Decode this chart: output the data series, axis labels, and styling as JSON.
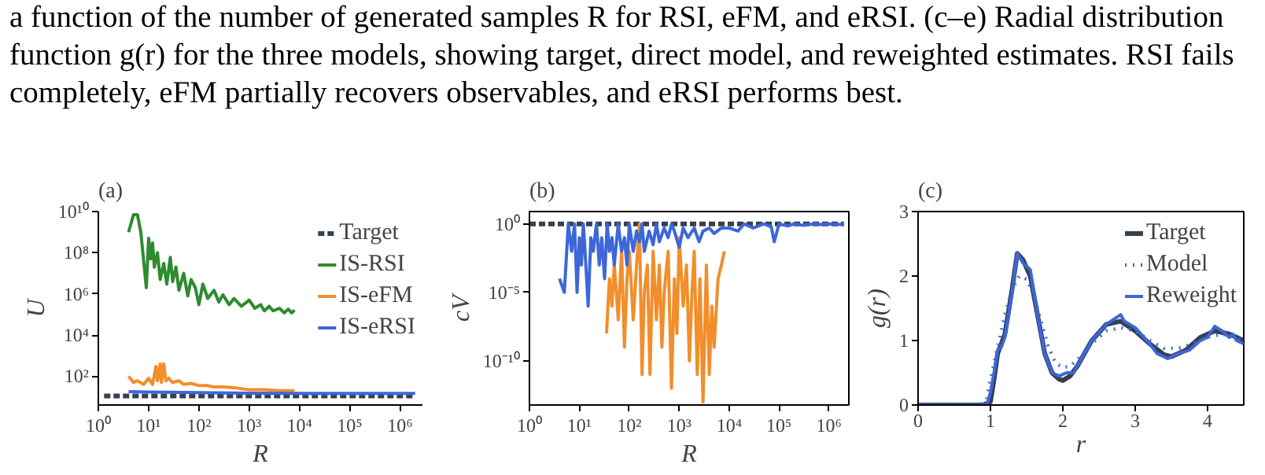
{
  "chart_data": [
    {
      "type": "other",
      "annotations": [
        "a function of the number of generated samples R for RSI, eFM, and eRSI. (c–e) Radial distribution",
        "function g(r) for the three models, showing target, direct model, and reweighted estimates. RSI fails",
        "completely, eFM partially recovers observables, and eRSI performs best."
      ]
    },
    {
      "type": "line",
      "title": "(a)",
      "xlabel": "R",
      "ylabel": "U",
      "log": "xy",
      "grid": false,
      "legend": "top right",
      "xlim": [
        1,
        2800000
      ],
      "ylim": [
        4,
        10000000000
      ],
      "xticks": [
        {
          "value": 1,
          "label": "10⁰"
        },
        {
          "value": 10,
          "label": "10¹"
        },
        {
          "value": 100,
          "label": "10²"
        },
        {
          "value": 1000,
          "label": "10³"
        },
        {
          "value": 10000,
          "label": "10⁴"
        },
        {
          "value": 100000,
          "label": "10⁵"
        },
        {
          "value": 1000000,
          "label": "10⁶"
        }
      ],
      "yticks": [
        {
          "value": 100,
          "label": "10²"
        },
        {
          "value": 10000,
          "label": "10⁴"
        },
        {
          "value": 1000000,
          "label": "10⁶"
        },
        {
          "value": 100000000,
          "label": "10⁸"
        },
        {
          "value": 10000000000,
          "label": "10¹⁰"
        }
      ],
      "series": [
        {
          "name": "Target",
          "color": "#35404f",
          "line_style": "dashed",
          "x": [
            1.3,
            2000000
          ],
          "values": [
            11,
            11
          ]
        },
        {
          "name": "IS-RSI",
          "color": "#2e8b2e",
          "x": [
            4,
            5,
            6,
            7,
            9,
            10,
            11,
            12,
            13,
            15,
            17,
            20,
            23,
            27,
            30,
            35,
            40,
            50,
            60,
            70,
            85,
            100,
            120,
            150,
            200,
            250,
            300,
            400,
            500,
            700,
            1000,
            1300,
            1700,
            2000,
            2500,
            3000,
            4000,
            5000,
            6000,
            7000,
            8000
          ],
          "values": [
            1000000000,
            7000000000,
            7000000000,
            1000000000,
            2000000,
            500000000,
            50000000,
            300000000,
            20000000,
            100000000,
            5000000,
            30000000,
            3000000,
            60000000,
            4000000,
            20000000,
            1500000,
            10000000,
            800000,
            5000000,
            2000000,
            300000,
            3000000,
            600000,
            1500000,
            400000,
            900000,
            300000,
            600000,
            250000,
            500000,
            200000,
            300000,
            150000,
            250000,
            150000,
            200000,
            120000,
            180000,
            120000,
            160000
          ]
        },
        {
          "name": "IS-eFM",
          "color": "#f28e2b",
          "x": [
            4,
            5,
            6,
            8,
            10,
            12,
            14,
            15,
            17,
            18,
            20,
            22,
            25,
            30,
            40,
            50,
            70,
            100,
            150,
            200,
            300,
            500,
            700,
            1000,
            2000,
            4000,
            8000
          ],
          "values": [
            100,
            50,
            60,
            40,
            80,
            40,
            300,
            60,
            400,
            50,
            400,
            60,
            80,
            50,
            60,
            40,
            45,
            35,
            35,
            30,
            30,
            28,
            25,
            22,
            22,
            20,
            20
          ]
        },
        {
          "name": "IS-eRSI",
          "color": "#3d67d9",
          "x": [
            4,
            10,
            100,
            1000,
            10000,
            100000,
            1000000,
            2000000
          ],
          "values": [
            18,
            17,
            16,
            15,
            14.5,
            14.5,
            14.5,
            14.5
          ]
        }
      ]
    },
    {
      "type": "line",
      "title": "(b)",
      "xlabel": "R",
      "ylabel": "cV",
      "log": "xy",
      "grid": false,
      "xlim": [
        1,
        2500000
      ],
      "ylim": [
        6e-14,
        8
      ],
      "xticks": [
        {
          "value": 1,
          "label": "10⁰"
        },
        {
          "value": 10,
          "label": "10¹"
        },
        {
          "value": 100,
          "label": "10²"
        },
        {
          "value": 1000,
          "label": "10³"
        },
        {
          "value": 10000,
          "label": "10⁴"
        },
        {
          "value": 100000,
          "label": "10⁵"
        },
        {
          "value": 1000000,
          "label": "10⁶"
        }
      ],
      "yticks": [
        {
          "value": 1e-10,
          "label": "10⁻¹⁰"
        },
        {
          "value": 1e-05,
          "label": "10⁻⁵"
        },
        {
          "value": 1,
          "label": "10⁰"
        }
      ],
      "series": [
        {
          "color": "#35404f",
          "line_style": "dashed",
          "x": [
            1,
            2000000
          ],
          "values": [
            1,
            1
          ]
        },
        {
          "color": "#f28e2b",
          "x": [
            35,
            40,
            45,
            50,
            55,
            60,
            70,
            80,
            90,
            100,
            120,
            140,
            160,
            180,
            200,
            230,
            260,
            300,
            350,
            400,
            450,
            500,
            600,
            700,
            800,
            900,
            1000,
            1200,
            1400,
            1600,
            1800,
            2000,
            2300,
            2600,
            3000,
            3500,
            4000,
            4500,
            5000,
            6000,
            7000,
            8000
          ],
          "values": [
            1e-08,
            0.0001,
            1e-06,
            0.001,
            1e-05,
            1e-07,
            0.01,
            1e-09,
            0.0001,
            0.01,
            1e-07,
            0.001,
            1,
            1e-11,
            1e-05,
            0.001,
            1e-11,
            0.01,
            1e-07,
            0.001,
            1e-09,
            1e-05,
            0.01,
            1e-12,
            0.0001,
            1e-08,
            0.1,
            1e-06,
            0.001,
            1e-10,
            1e-05,
            0.01,
            1e-11,
            0.0001,
            1e-13,
            0.001,
            1e-11,
            1e-06,
            1e-09,
            0.0001,
            0.001,
            0.01
          ]
        },
        {
          "color": "#3d67d9",
          "x": [
            4,
            5,
            6,
            7,
            8,
            9,
            10,
            11,
            12,
            13,
            15,
            17,
            19,
            22,
            25,
            28,
            32,
            36,
            40,
            45,
            50,
            60,
            70,
            80,
            90,
            100,
            120,
            140,
            160,
            180,
            200,
            250,
            300,
            350,
            400,
            500,
            600,
            700,
            800,
            1000,
            1200,
            1500,
            2000,
            2500,
            3000,
            4000,
            5000,
            7000,
            10000,
            15000,
            20000,
            30000,
            50000,
            70000,
            80000,
            100000,
            150000,
            200000,
            300000,
            500000,
            700000,
            1000000,
            1500000,
            2000000
          ],
          "values": [
            0.0001,
            1e-05,
            1,
            0.01,
            1,
            1e-05,
            0.1,
            0.001,
            1,
            0.01,
            1e-06,
            0.1,
            0.01,
            1,
            0.001,
            0.1,
            0.0001,
            1,
            0.01,
            0.1,
            0.001,
            1,
            0.01,
            0.1,
            0.001,
            1,
            0.01,
            0.3,
            0.05,
            1,
            0.01,
            0.3,
            0.03,
            1,
            0.05,
            0.5,
            0.1,
            1,
            0.3,
            0.02,
            0.5,
            0.1,
            0.5,
            0.05,
            0.3,
            0.5,
            0.2,
            0.5,
            0.5,
            0.3,
            1,
            0.5,
            1,
            0.6,
            0.05,
            1,
            0.7,
            1,
            0.8,
            1,
            0.9,
            1,
            0.9,
            1
          ]
        }
      ]
    },
    {
      "type": "line",
      "title": "(c)",
      "xlabel": "r",
      "ylabel": "g(r)",
      "grid": false,
      "legend": "top right",
      "xlim": [
        0,
        4.5
      ],
      "ylim": [
        0,
        3
      ],
      "xticks": [
        0,
        1,
        2,
        3,
        4
      ],
      "yticks": [
        0,
        1,
        2,
        3
      ],
      "series": [
        {
          "name": "Target",
          "color": "#35404f",
          "x": [
            0,
            0.9,
            1.0,
            1.05,
            1.1,
            1.2,
            1.3,
            1.37,
            1.45,
            1.55,
            1.65,
            1.75,
            1.85,
            1.95,
            2.0,
            2.1,
            2.2,
            2.4,
            2.6,
            2.8,
            3.0,
            3.2,
            3.4,
            3.5,
            3.7,
            3.9,
            4.1,
            4.3,
            4.5
          ],
          "values": [
            0,
            0,
            0.05,
            0.4,
            0.8,
            1.1,
            1.8,
            2.35,
            2.25,
            2.0,
            1.4,
            0.8,
            0.5,
            0.4,
            0.38,
            0.45,
            0.6,
            1.0,
            1.25,
            1.3,
            1.15,
            0.95,
            0.78,
            0.75,
            0.85,
            1.05,
            1.15,
            1.1,
            1.0
          ]
        },
        {
          "name": "Model",
          "color": "#3d67d9",
          "line_style": "dotted",
          "x": [
            0,
            0.85,
            0.95,
            1.0,
            1.1,
            1.2,
            1.3,
            1.4,
            1.5,
            1.6,
            1.7,
            1.8,
            1.9,
            2.0,
            2.1,
            2.2,
            2.4,
            2.6,
            2.8,
            3.0,
            3.2,
            3.4,
            3.6,
            3.8,
            4.0,
            4.2,
            4.4,
            4.5
          ],
          "values": [
            0,
            0,
            0.1,
            0.4,
            0.9,
            1.4,
            1.8,
            2.0,
            1.95,
            1.7,
            1.3,
            0.9,
            0.65,
            0.58,
            0.6,
            0.7,
            0.95,
            1.15,
            1.2,
            1.15,
            1.0,
            0.88,
            0.88,
            0.95,
            1.05,
            1.1,
            1.05,
            1.0
          ]
        },
        {
          "name": "Reweight",
          "color": "#3d67d9",
          "x": [
            0,
            0.95,
            1.0,
            1.05,
            1.1,
            1.15,
            1.2,
            1.3,
            1.37,
            1.45,
            1.55,
            1.65,
            1.75,
            1.85,
            1.95,
            2.05,
            2.15,
            2.25,
            2.4,
            2.6,
            2.8,
            2.85,
            3.0,
            3.2,
            3.3,
            3.45,
            3.6,
            3.75,
            3.9,
            4.0,
            4.1,
            4.2,
            4.3,
            4.35,
            4.4,
            4.5
          ],
          "values": [
            0,
            0,
            0.2,
            0.5,
            0.85,
            0.9,
            1.05,
            1.75,
            2.35,
            2.2,
            2.1,
            1.4,
            0.8,
            0.5,
            0.45,
            0.5,
            0.5,
            0.7,
            1.0,
            1.25,
            1.4,
            1.3,
            1.2,
            0.95,
            0.8,
            0.72,
            0.8,
            0.85,
            1.0,
            1.05,
            1.22,
            1.15,
            1.05,
            1.1,
            1.0,
            0.95
          ]
        }
      ]
    }
  ]
}
